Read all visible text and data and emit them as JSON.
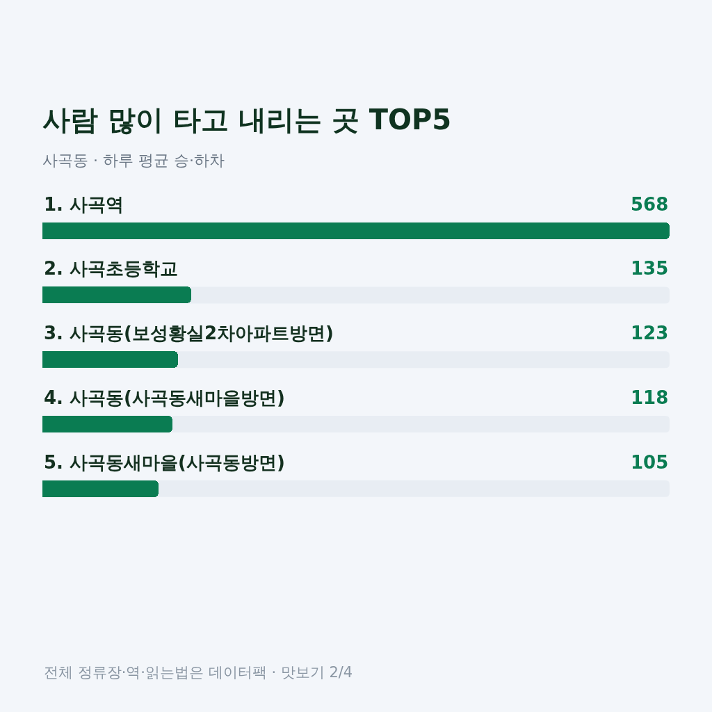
{
  "chart_data": {
    "type": "bar",
    "orientation": "horizontal",
    "title": "사람 많이 타고 내리는 곳 TOP5",
    "subtitle": "사곡동 · 하루 평균 승·하차",
    "categories": [
      "1. 사곡역",
      "2. 사곡초등학교",
      "3. 사곡동(보성황실2차아파트방면)",
      "4. 사곡동(사곡동새마을방면)",
      "5. 사곡동새마을(사곡동방면)"
    ],
    "values": [
      568,
      135,
      123,
      118,
      105
    ],
    "color": "#0a7c52",
    "xlim": [
      0,
      568
    ],
    "data_labels": true,
    "annotations": [
      "전체 정류장·역·읽는법은 데이터팩 · 맛보기 2/4"
    ]
  }
}
